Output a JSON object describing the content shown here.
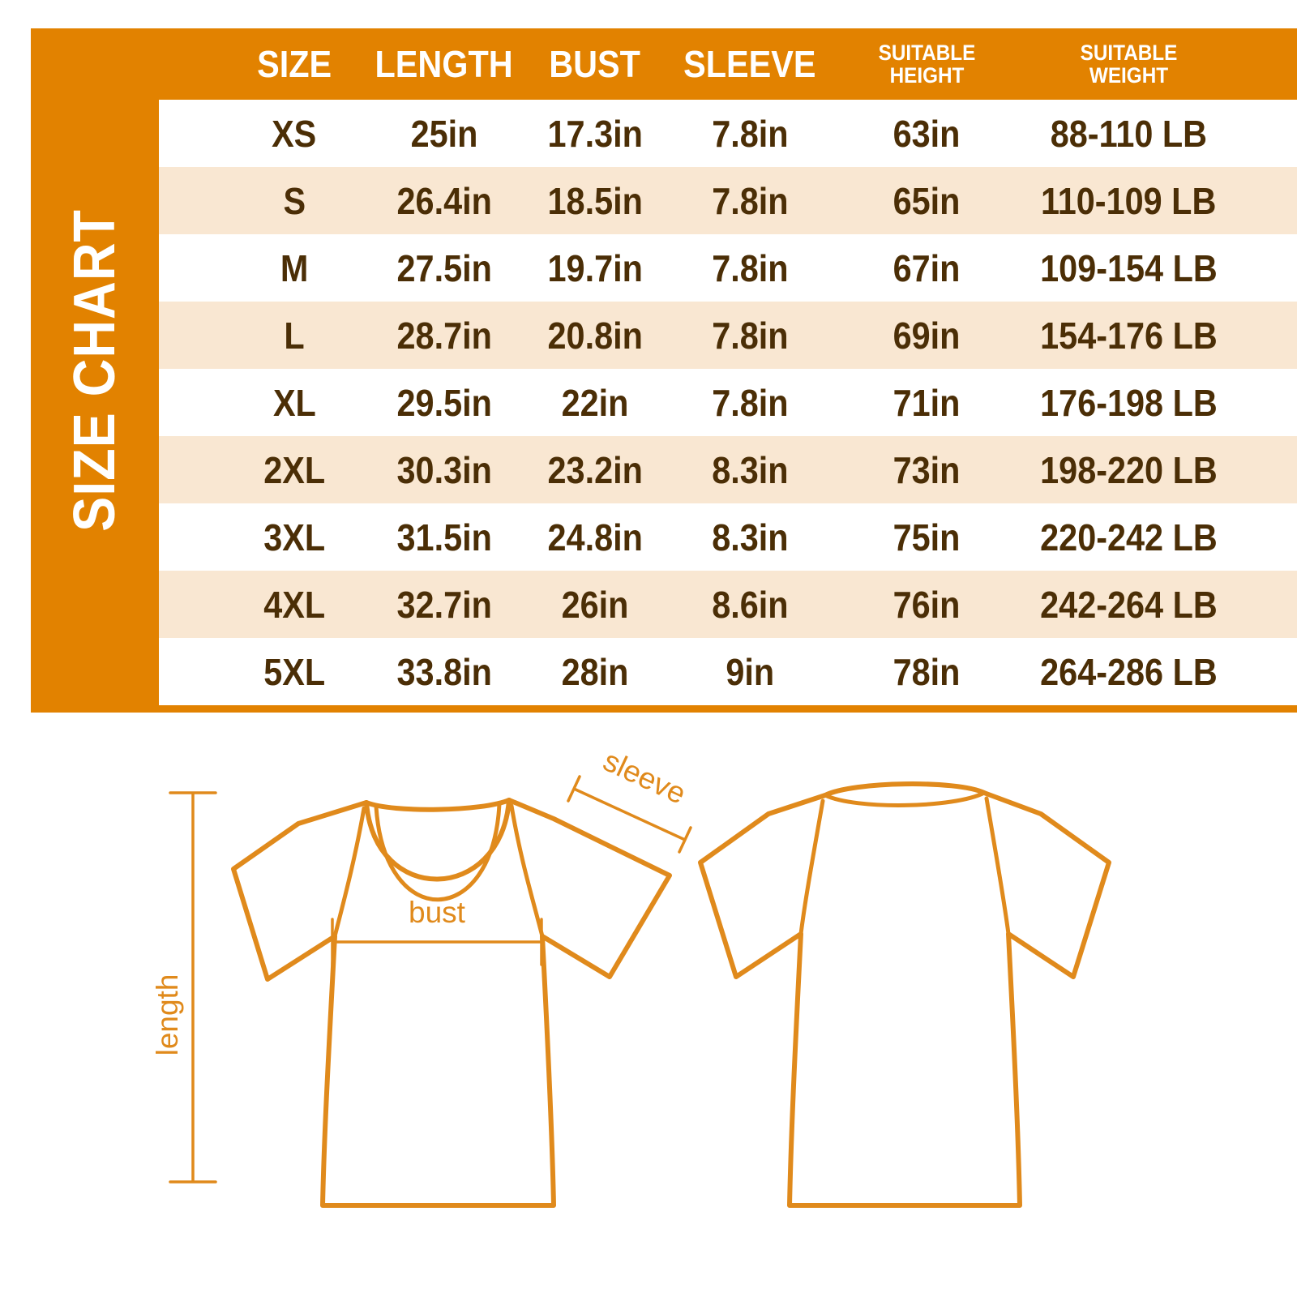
{
  "sidebar": {
    "title": "SIZE CHART"
  },
  "table": {
    "columns": [
      {
        "id": "size",
        "lines": [
          "SIZE"
        ]
      },
      {
        "id": "length",
        "lines": [
          "LENGTH"
        ]
      },
      {
        "id": "bust",
        "lines": [
          "BUST"
        ]
      },
      {
        "id": "sleeve",
        "lines": [
          "SLEEVE"
        ]
      },
      {
        "id": "suitable_height",
        "lines": [
          "SUITABLE",
          "HEIGHT"
        ]
      },
      {
        "id": "suitable_weight",
        "lines": [
          "SUITABLE",
          "WEIGHT"
        ]
      }
    ],
    "rows": [
      {
        "size": "XS",
        "length": "25in",
        "bust": "17.3in",
        "sleeve": "7.8in",
        "suitable_height": "63in",
        "suitable_weight": "88-110 LB"
      },
      {
        "size": "S",
        "length": "26.4in",
        "bust": "18.5in",
        "sleeve": "7.8in",
        "suitable_height": "65in",
        "suitable_weight": "110-109 LB"
      },
      {
        "size": "M",
        "length": "27.5in",
        "bust": "19.7in",
        "sleeve": "7.8in",
        "suitable_height": "67in",
        "suitable_weight": "109-154 LB"
      },
      {
        "size": "L",
        "length": "28.7in",
        "bust": "20.8in",
        "sleeve": "7.8in",
        "suitable_height": "69in",
        "suitable_weight": "154-176 LB"
      },
      {
        "size": "XL",
        "length": "29.5in",
        "bust": "22in",
        "sleeve": "7.8in",
        "suitable_height": "71in",
        "suitable_weight": "176-198 LB"
      },
      {
        "size": "2XL",
        "length": "30.3in",
        "bust": "23.2in",
        "sleeve": "8.3in",
        "suitable_height": "73in",
        "suitable_weight": "198-220 LB"
      },
      {
        "size": "3XL",
        "length": "31.5in",
        "bust": "24.8in",
        "sleeve": "8.3in",
        "suitable_height": "75in",
        "suitable_weight": "220-242 LB"
      },
      {
        "size": "4XL",
        "length": "32.7in",
        "bust": "26in",
        "sleeve": "8.6in",
        "suitable_height": "76in",
        "suitable_weight": "242-264 LB"
      },
      {
        "size": "5XL",
        "length": "33.8in",
        "bust": "28in",
        "sleeve": "9in",
        "suitable_height": "78in",
        "suitable_weight": "264-286 LB"
      }
    ]
  },
  "diagram": {
    "labels": {
      "length": "length",
      "bust": "bust",
      "sleeve": "sleeve"
    }
  },
  "colors": {
    "frame_orange": "#E28200",
    "row_peach": "#F9E7D2",
    "text_brown": "#4B2E06",
    "line_orange": "#E08A1C",
    "header_text": "#FFFFFF"
  }
}
